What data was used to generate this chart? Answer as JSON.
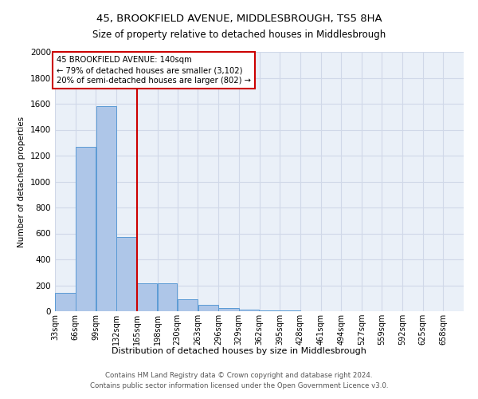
{
  "title1": "45, BROOKFIELD AVENUE, MIDDLESBROUGH, TS5 8HA",
  "title2": "Size of property relative to detached houses in Middlesbrough",
  "xlabel": "Distribution of detached houses by size in Middlesbrough",
  "ylabel": "Number of detached properties",
  "bar_values": [
    140,
    1270,
    1580,
    570,
    215,
    215,
    95,
    48,
    25,
    15,
    8,
    5,
    3,
    2,
    2,
    1,
    1,
    1,
    1,
    1
  ],
  "bin_edges": [
    33,
    66,
    99,
    132,
    165,
    198,
    230,
    263,
    296,
    329,
    362,
    395,
    428,
    461,
    494,
    527,
    559,
    592,
    625,
    658,
    691
  ],
  "bar_color": "#aec6e8",
  "bar_edgecolor": "#5b9bd5",
  "vline_color": "#cc0000",
  "annotation_title": "45 BROOKFIELD AVENUE: 140sqm",
  "annotation_line1": "← 79% of detached houses are smaller (3,102)",
  "annotation_line2": "20% of semi-detached houses are larger (802) →",
  "annotation_box_color": "#ffffff",
  "annotation_box_edgecolor": "#cc0000",
  "grid_color": "#d0d8e8",
  "background_color": "#eaf0f8",
  "footer_line1": "Contains HM Land Registry data © Crown copyright and database right 2024.",
  "footer_line2": "Contains public sector information licensed under the Open Government Licence v3.0.",
  "ylim": [
    0,
    2000
  ],
  "yticks": [
    0,
    200,
    400,
    600,
    800,
    1000,
    1200,
    1400,
    1600,
    1800,
    2000
  ]
}
